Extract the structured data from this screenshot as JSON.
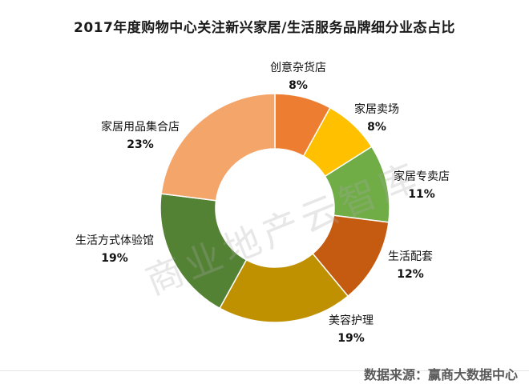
{
  "title": "2017年度购物中心关注新兴家居/生活服务品牌细分业态占比",
  "watermark": "商业地产云智库",
  "source": "数据来源：赢商大数据中心",
  "chart_data": {
    "type": "pie",
    "donut": true,
    "title": "2017年度购物中心关注新兴家居/生活服务品牌细分业态占比",
    "slices": [
      {
        "label": "创意杂货店",
        "value": 8,
        "value_label": "8%",
        "color": "#ED7D31"
      },
      {
        "label": "家居卖场",
        "value": 8,
        "value_label": "8%",
        "color": "#FFC000"
      },
      {
        "label": "家居专卖店",
        "value": 11,
        "value_label": "11%",
        "color": "#70AD47"
      },
      {
        "label": "生活配套",
        "value": 12,
        "value_label": "12%",
        "color": "#C55A11"
      },
      {
        "label": "美容护理",
        "value": 19,
        "value_label": "19%",
        "color": "#BF9000"
      },
      {
        "label": "生活方式体验馆",
        "value": 19,
        "value_label": "19%",
        "color": "#548235"
      },
      {
        "label": "家居用品集合店",
        "value": 23,
        "value_label": "23%",
        "color": "#F4A56A"
      }
    ]
  }
}
